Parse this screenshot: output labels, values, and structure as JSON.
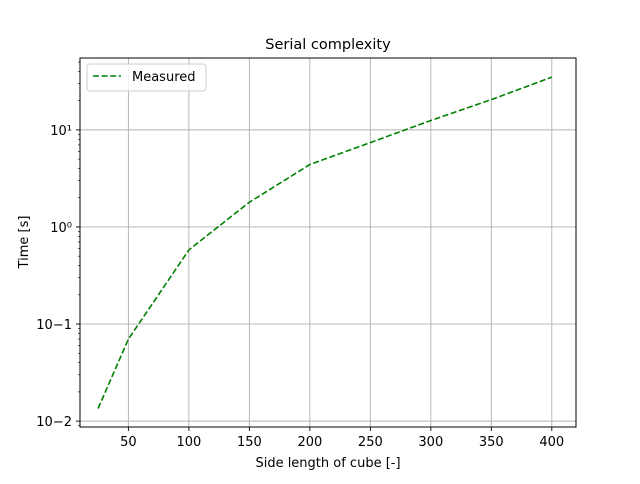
{
  "chart_data": {
    "type": "line",
    "title": "Serial complexity",
    "xlabel": "Side length of cube [-]",
    "ylabel": "Time [s]",
    "xlim": [
      10,
      420
    ],
    "ylim": [
      0.0087,
      55
    ],
    "yscale": "log",
    "grid": true,
    "legend_placement": "top-left",
    "xticks": [
      50,
      100,
      150,
      200,
      250,
      300,
      350,
      400
    ],
    "xtick_labels": [
      "50",
      "100",
      "150",
      "200",
      "250",
      "300",
      "350",
      "400"
    ],
    "yticks": [
      0.01,
      0.1,
      1,
      10
    ],
    "ytick_labels": [
      "10−2",
      "10−1",
      "10⁰",
      "10¹"
    ],
    "series": [
      {
        "name": "Measured",
        "color": "#008000",
        "linestyle": "dashed",
        "x": [
          25,
          50,
          100,
          150,
          200,
          250,
          300,
          350,
          400
        ],
        "y": [
          0.0135,
          0.07,
          0.58,
          1.8,
          4.4,
          7.4,
          12.5,
          20.5,
          35
        ]
      }
    ]
  }
}
